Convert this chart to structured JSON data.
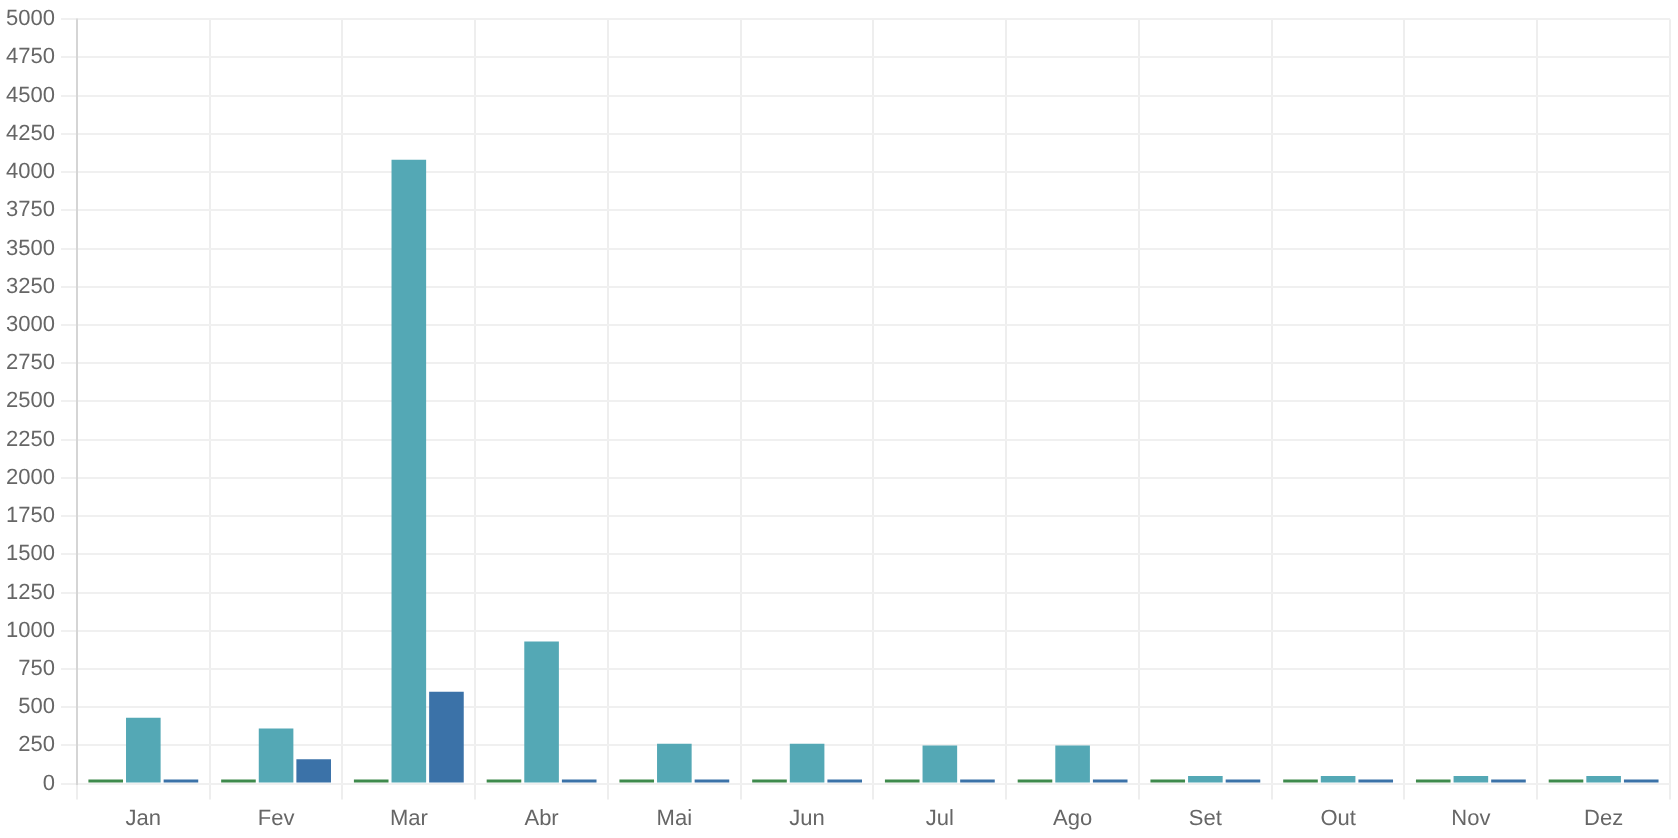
{
  "chart_data": {
    "type": "bar",
    "categories": [
      "Jan",
      "Fev",
      "Mar",
      "Abr",
      "Mai",
      "Jun",
      "Jul",
      "Ago",
      "Set",
      "Out",
      "Nov",
      "Dez"
    ],
    "series": [
      {
        "color": "#3e8a4c",
        "values": [
          0,
          0,
          0,
          0,
          0,
          0,
          0,
          0,
          0,
          0,
          0,
          0
        ]
      },
      {
        "color": "#54a8b5",
        "values": [
          430,
          360,
          4080,
          930,
          260,
          260,
          250,
          250,
          50,
          50,
          50,
          50
        ]
      },
      {
        "color": "#3b72a8",
        "values": [
          0,
          160,
          600,
          20,
          0,
          0,
          0,
          0,
          0,
          0,
          0,
          0
        ]
      }
    ],
    "ylim": [
      0,
      5000
    ],
    "yticks": [
      0,
      250,
      500,
      750,
      1000,
      1250,
      1500,
      1750,
      2000,
      2250,
      2500,
      2750,
      3000,
      3250,
      3500,
      3750,
      4000,
      4250,
      4500,
      4750,
      5000
    ],
    "grid": true,
    "legend": false
  }
}
